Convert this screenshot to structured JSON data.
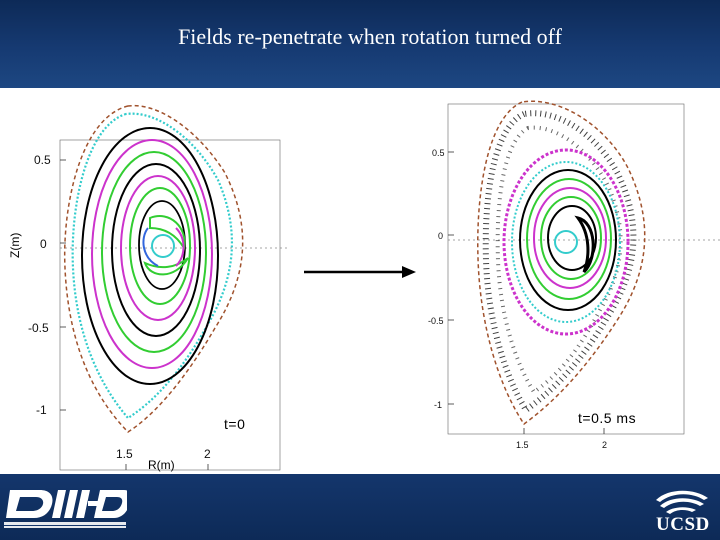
{
  "slide": {
    "title": "Fields re-penetrate when rotation turned off"
  },
  "left_panel": {
    "time_label": "t=0",
    "y_axis_label": "Z(m)",
    "x_axis_label": "R(m)",
    "y_ticks": [
      "0.5",
      "0",
      "-0.5",
      "-1"
    ],
    "x_ticks": [
      "1.5",
      "2"
    ]
  },
  "right_panel": {
    "time_label": "t=0.5 ms",
    "y_ticks": [
      "0.5",
      "0",
      "-0.5",
      "-1"
    ],
    "x_ticks": [
      "1.5",
      "2"
    ]
  },
  "colors": {
    "header_bg": "#163a72",
    "black_surface": "#000000",
    "green_surface": "#32cd32",
    "magenta_surface": "#cc33cc",
    "cyan_surface": "#33cccc",
    "blue_surface": "#3366dd",
    "wall": "#a0522d"
  },
  "logos": {
    "left": "DIII-D National Fusion Facility logo",
    "right": "UCSD logo",
    "right_text": "UCSD"
  }
}
